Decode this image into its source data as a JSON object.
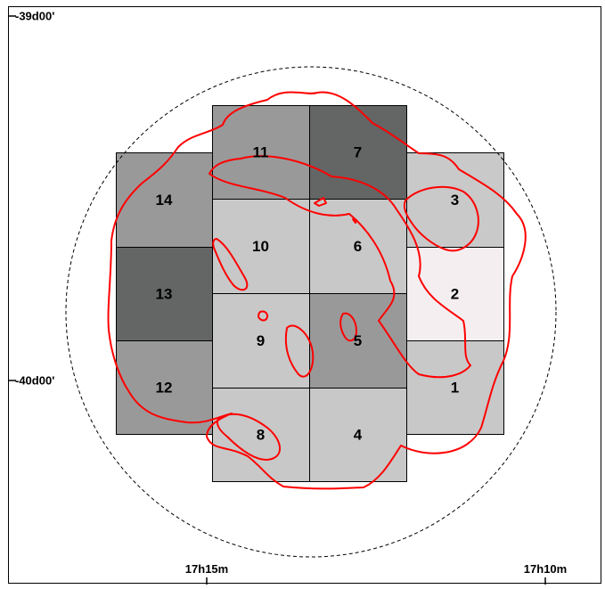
{
  "chart_data": {
    "type": "heatmap",
    "title": "",
    "xlabel": "",
    "ylabel": "",
    "x_ticks": [
      "17h15m",
      "17h10m"
    ],
    "y_ticks": [
      "-39d00'",
      "-40d00'"
    ],
    "tiles": [
      {
        "label": "1",
        "shade": "#c8c8c8"
      },
      {
        "label": "2",
        "shade": "#f4eef1"
      },
      {
        "label": "3",
        "shade": "#c9c9c9"
      },
      {
        "label": "4",
        "shade": "#c8c8c8"
      },
      {
        "label": "5",
        "shade": "#9a999a"
      },
      {
        "label": "6",
        "shade": "#c8c8c8"
      },
      {
        "label": "7",
        "shade": "#646565"
      },
      {
        "label": "8",
        "shade": "#c8c8c8"
      },
      {
        "label": "9",
        "shade": "#c8c8c8"
      },
      {
        "label": "10",
        "shade": "#c8c8c8"
      },
      {
        "label": "11",
        "shade": "#9a999a"
      },
      {
        "label": "12",
        "shade": "#9a999a"
      },
      {
        "label": "13",
        "shade": "#646565"
      },
      {
        "label": "14",
        "shade": "#9a999a"
      }
    ],
    "contour_color": "#ff0000",
    "circle_style": "dashed"
  }
}
